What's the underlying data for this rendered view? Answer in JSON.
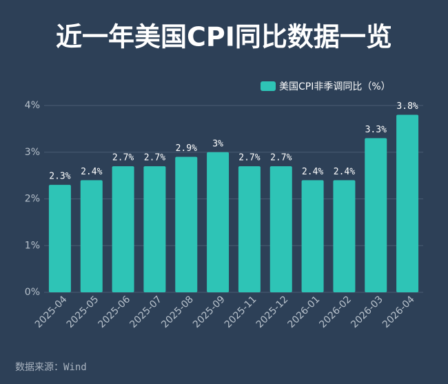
{
  "chart_data": {
    "type": "bar",
    "title": "近一年美国CPI同比数据一览",
    "source": "数据来源：Wind",
    "categories": [
      "2025-04",
      "2025-05",
      "2025-06",
      "2025-07",
      "2025-08",
      "2025-09",
      "2025-11",
      "2025-12",
      "2026-01",
      "2026-02",
      "2026-03",
      "2026-04"
    ],
    "series": [
      {
        "name": "美国CPI非季调同比（%）",
        "color": "#2ec4b6",
        "values": [
          2.3,
          2.4,
          2.7,
          2.7,
          2.9,
          3,
          2.7,
          2.7,
          2.4,
          2.4,
          3.3,
          3.8
        ],
        "value_labels": [
          "2.3%",
          "2.4%",
          "2.7%",
          "2.7%",
          "2.9%",
          "3%",
          "2.7%",
          "2.7%",
          "2.4%",
          "2.4%",
          "3.3%",
          "3.8%"
        ]
      }
    ],
    "ylim": [
      0,
      4
    ],
    "yticks": [
      {
        "value": 0,
        "label": "0%"
      },
      {
        "value": 1,
        "label": "1%"
      },
      {
        "value": 2,
        "label": "2%"
      },
      {
        "value": 3,
        "label": "3%"
      },
      {
        "value": 4,
        "label": "4%"
      }
    ],
    "grid": true,
    "legend": "top-right"
  }
}
